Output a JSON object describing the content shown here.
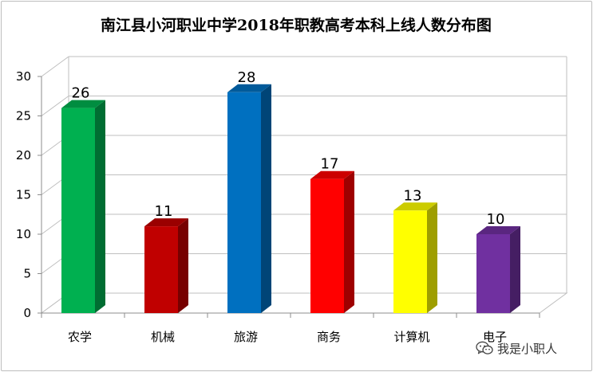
{
  "chart_data": {
    "type": "bar",
    "title": "南江县小河职业中学2018年职教高考本科上线人数分布图",
    "categories": [
      "农学",
      "机械",
      "旅游",
      "商务",
      "计算机",
      "电子"
    ],
    "values": [
      26,
      11,
      28,
      17,
      13,
      10
    ],
    "colors": [
      "#00b050",
      "#c00000",
      "#0070c0",
      "#ff0000",
      "#ffff00",
      "#7030a0"
    ],
    "ylim": [
      0,
      30
    ],
    "yticks": [
      0,
      5,
      10,
      15,
      20,
      25,
      30
    ],
    "grid": true,
    "legend": "none",
    "style": "3d-column"
  },
  "watermark": {
    "text": "我是小职人",
    "icon": "wechat-icon"
  }
}
